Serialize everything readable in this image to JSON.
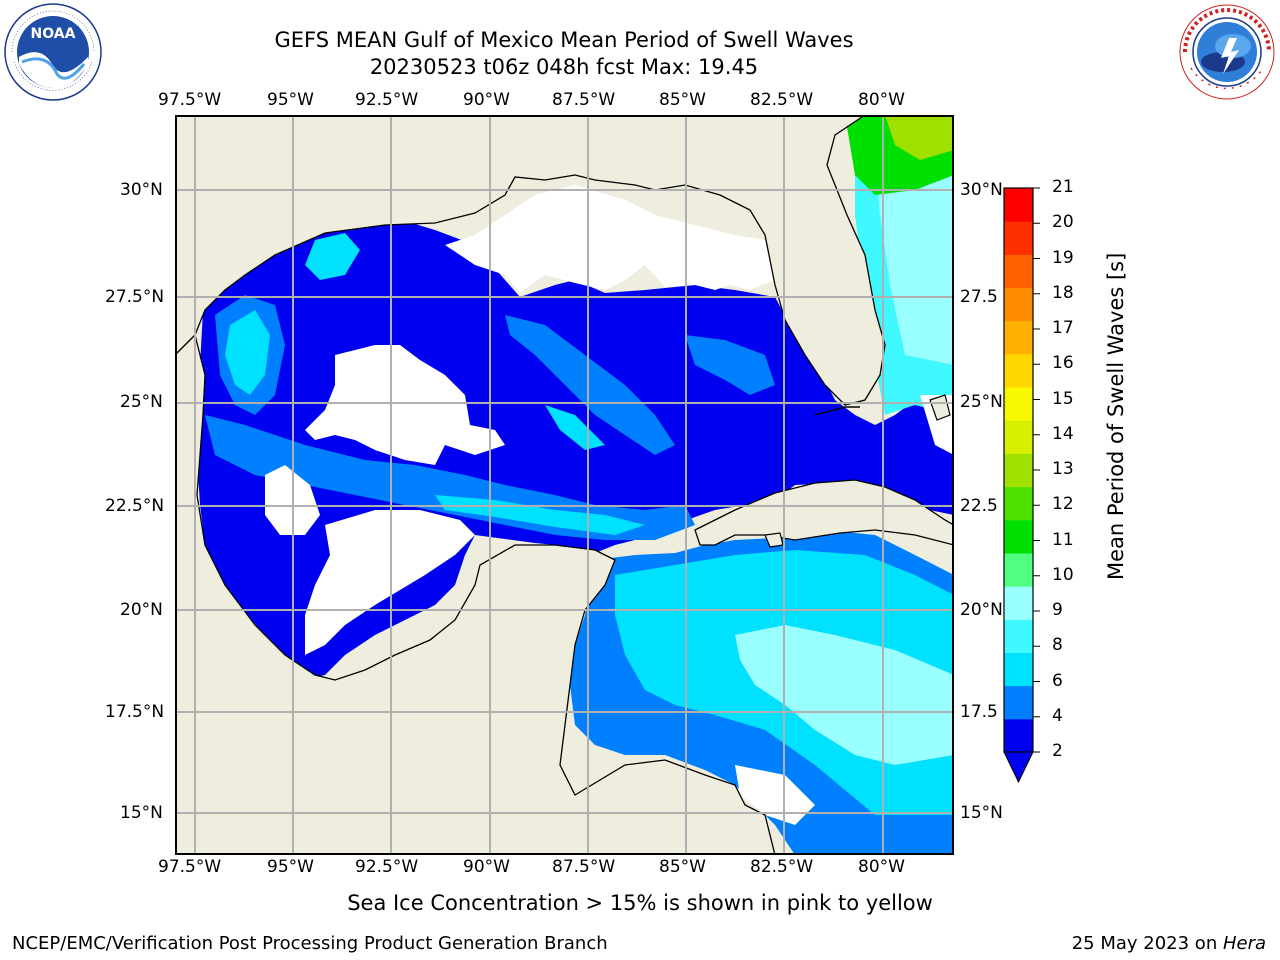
{
  "header": {
    "title_line1": "GEFS MEAN Gulf of Mexico Mean Period of Swell Waves",
    "title_line2": "20230523 t06z 048h fcst   Max: 19.45"
  },
  "logos": {
    "noaa_text": "NOAA",
    "noaa_ring_text": "NATIONAL OCEANIC AND ATMOSPHERIC ADMINISTRATION · U.S. DEPARTMENT OF COMMERCE",
    "nws_ring_text": "NATIONAL WEATHER SERVICE"
  },
  "map": {
    "lon_labels": [
      "97.5°W",
      "95°W",
      "92.5°W",
      "90°W",
      "87.5°W",
      "85°W",
      "82.5°W",
      "80°W"
    ],
    "lat_labels_left": [
      "30°N",
      "27.5°N",
      "25°N",
      "22.5°N",
      "20°N",
      "17.5°N",
      "15°N"
    ],
    "lat_labels_right": [
      "30°N",
      "27.5",
      "25°N",
      "22.5",
      "20°N",
      "17.5",
      "15°N"
    ],
    "land_color": "#eeedde",
    "grid_color": "#b0b0b0"
  },
  "colorbar": {
    "label": "Mean Period of Swell Waves [s]",
    "ticks": [
      "21",
      "20",
      "19",
      "18",
      "17",
      "16",
      "15",
      "14",
      "13",
      "12",
      "11",
      "10",
      "9",
      "8",
      "6",
      "4",
      "2"
    ],
    "colors_bottom_to_top": [
      "#0000f0",
      "#0080ff",
      "#00e0ff",
      "#40f8ff",
      "#99ffff",
      "#50ff80",
      "#00e000",
      "#50e000",
      "#a0e000",
      "#d8f000",
      "#f8f800",
      "#ffd800",
      "#ffb000",
      "#ff8c00",
      "#ff6000",
      "#ff3000",
      "#ff0000"
    ]
  },
  "footer": {
    "note": "Sea Ice Concentration > 15% is shown in pink to yellow",
    "credit": "NCEP/EMC/Verification Post Processing Product Generation Branch",
    "date": "25 May 2023 on ",
    "host": "Hera"
  }
}
